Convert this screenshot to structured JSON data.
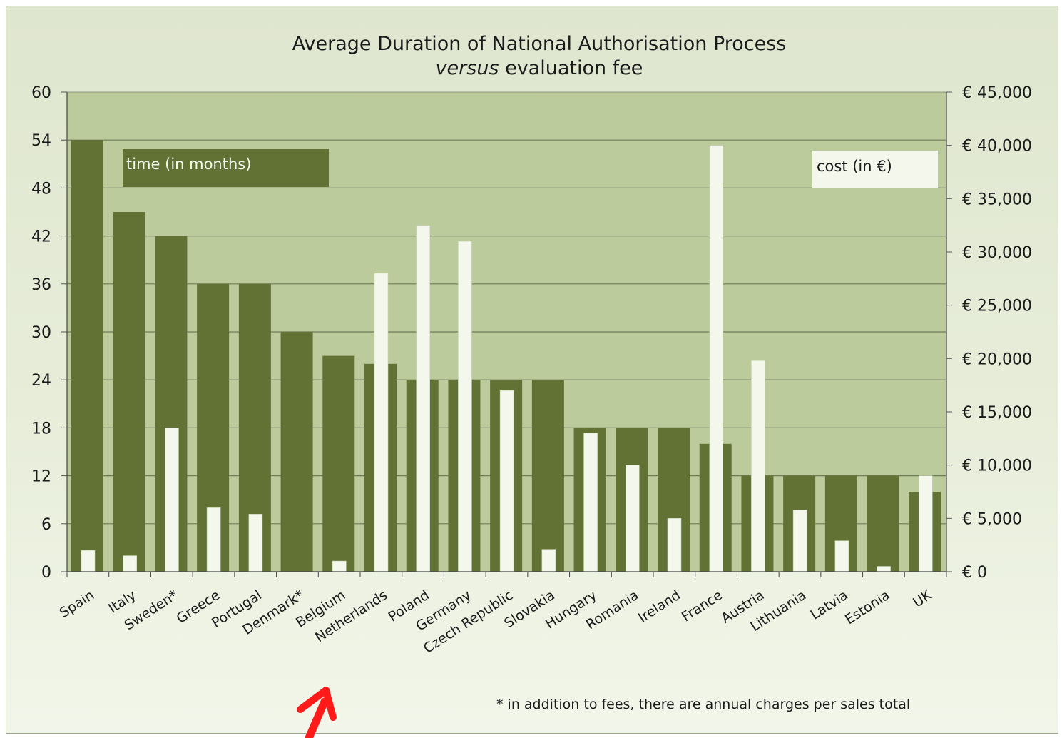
{
  "chart_data": {
    "type": "bar",
    "title": "Average Duration of National Authorisation Process",
    "subtitle_italic": "versus",
    "subtitle_rest": " evaluation fee",
    "categories": [
      "Spain",
      "Italy",
      "Sweden*",
      "Greece",
      "Portugal",
      "Denmark*",
      "Belgium",
      "Netherlands",
      "Poland",
      "Germany",
      "Czech Republic",
      "Slovakia",
      "Hungary",
      "Romania",
      "Ireland",
      "France",
      "Austria",
      "Lithuania",
      "Latvia",
      "Estonia",
      "UK"
    ],
    "series": [
      {
        "name": "time (in months)",
        "axis": "left",
        "color": "#617234",
        "values": [
          54,
          45,
          42,
          36,
          36,
          30,
          27,
          26,
          24,
          24,
          24,
          24,
          18,
          18,
          18,
          16,
          12,
          12,
          12,
          12,
          10
        ]
      },
      {
        "name": "cost (in €)",
        "axis": "right",
        "color": "#f4f8ec",
        "values": [
          2000,
          1500,
          13500,
          6000,
          5400,
          0,
          1000,
          28000,
          32500,
          31000,
          17000,
          2100,
          13000,
          10000,
          5000,
          40000,
          19800,
          5800,
          2900,
          500,
          9000
        ]
      }
    ],
    "ylim_left": [
      0,
      60
    ],
    "yticks_left": [
      "0",
      "6",
      "12",
      "18",
      "24",
      "30",
      "36",
      "42",
      "48",
      "54",
      "60"
    ],
    "ylim_right": [
      0,
      45000
    ],
    "yticks_right": [
      "€ 0",
      "€ 5,000",
      "€ 10,000",
      "€ 15,000",
      "€ 20,000",
      "€ 25,000",
      "€ 30,000",
      "€ 35,000",
      "€ 40,000",
      "€ 45,000"
    ],
    "grid": true,
    "plot_background": "#bccb9b",
    "note": "* in addition to fees, there are annual charges per sales total",
    "annotation": {
      "type": "red-arrow",
      "points_to": "Netherlands",
      "color": "#ff1a1a"
    }
  }
}
